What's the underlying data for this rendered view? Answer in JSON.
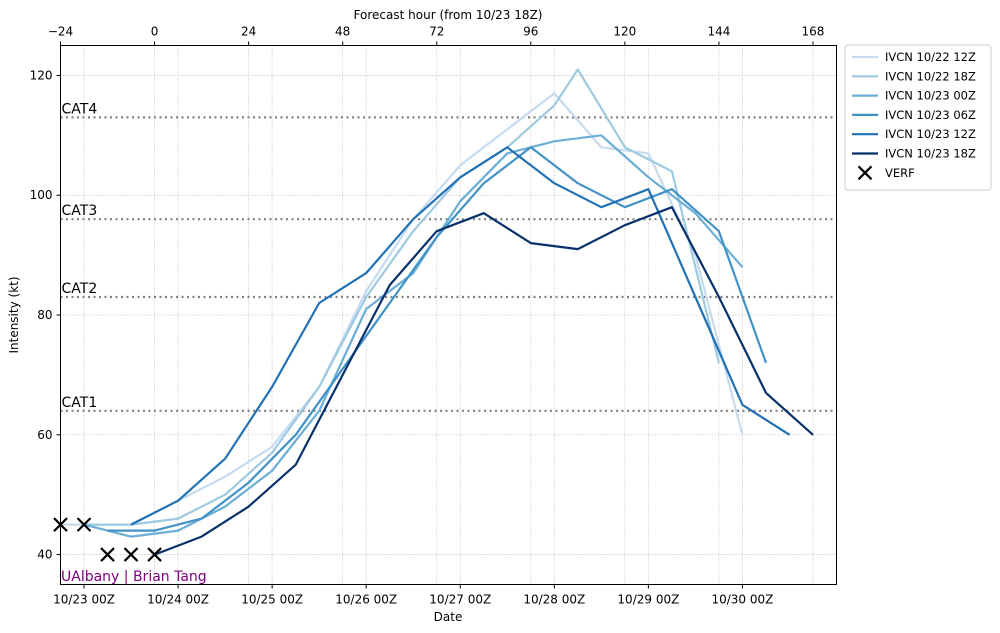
{
  "chart_data": {
    "type": "line",
    "xlabel": "Date",
    "ylabel": "Intensity (kt)",
    "top_axis_label": "Forecast hour (from 10/23 18Z)",
    "x_ticks": [
      "10/23 00Z",
      "10/24 00Z",
      "10/25 00Z",
      "10/26 00Z",
      "10/27 00Z",
      "10/28 00Z",
      "10/29 00Z",
      "10/30 00Z"
    ],
    "top_ticks": [
      "−24",
      "0",
      "24",
      "48",
      "72",
      "96",
      "120",
      "144",
      "168"
    ],
    "y_ticks": [
      "40",
      "60",
      "80",
      "100",
      "120"
    ],
    "xlim_hours_from_10_23_00Z": [
      -6,
      192
    ],
    "ylim": [
      35,
      125
    ],
    "grid": true,
    "legend_position": "outside-right-top",
    "category_lines": [
      {
        "label": "CAT1",
        "value": 64
      },
      {
        "label": "CAT2",
        "value": 83
      },
      {
        "label": "CAT3",
        "value": 96
      },
      {
        "label": "CAT4",
        "value": 113
      }
    ],
    "credit": "UAlbany | Brian Tang",
    "credit_color": "#800080",
    "series": [
      {
        "name": "IVCN 10/22 12Z",
        "color": "#c6dbef",
        "x": [
          "10/22 18Z",
          "10/23 00Z",
          "10/23 12Z",
          "10/24 00Z",
          "10/24 12Z",
          "10/25 00Z",
          "10/25 12Z",
          "10/26 00Z",
          "10/26 12Z",
          "10/27 00Z",
          "10/27 12Z",
          "10/28 00Z",
          "10/28 12Z",
          "10/29 00Z",
          "10/29 12Z",
          "10/30 00Z"
        ],
        "y": [
          45,
          45,
          45,
          49,
          53,
          58,
          68,
          84,
          96,
          105,
          111,
          117,
          108,
          107,
          90,
          60
        ]
      },
      {
        "name": "IVCN 10/22 18Z",
        "color": "#9ecae1",
        "x": [
          "10/23 00Z",
          "10/23 12Z",
          "10/24 00Z",
          "10/24 12Z",
          "10/25 00Z",
          "10/25 12Z",
          "10/26 00Z",
          "10/26 12Z",
          "10/27 00Z",
          "10/27 12Z",
          "10/28 00Z",
          "10/28 06Z",
          "10/28 18Z",
          "10/29 06Z",
          "10/29 18Z"
        ],
        "y": [
          45,
          45,
          46,
          50,
          57,
          68,
          83,
          94,
          103,
          108,
          115,
          121,
          108,
          104,
          72
        ]
      },
      {
        "name": "IVCN 10/23 00Z",
        "color": "#6baed6",
        "x": [
          "10/23 00Z",
          "10/23 12Z",
          "10/24 00Z",
          "10/24 12Z",
          "10/25 00Z",
          "10/25 12Z",
          "10/26 00Z",
          "10/26 12Z",
          "10/27 00Z",
          "10/27 12Z",
          "10/28 00Z",
          "10/28 12Z",
          "10/29 00Z",
          "10/29 12Z",
          "10/30 00Z"
        ],
        "y": [
          45,
          43,
          44,
          48,
          54,
          64,
          81,
          87,
          99,
          107,
          109,
          110,
          103,
          97,
          88
        ]
      },
      {
        "name": "IVCN 10/23 06Z",
        "color": "#4292c6",
        "x": [
          "10/23 06Z",
          "10/23 18Z",
          "10/24 06Z",
          "10/24 18Z",
          "10/25 06Z",
          "10/25 18Z",
          "10/26 06Z",
          "10/26 18Z",
          "10/27 06Z",
          "10/27 18Z",
          "10/28 06Z",
          "10/28 18Z",
          "10/29 06Z",
          "10/29 18Z",
          "10/30 06Z"
        ],
        "y": [
          44,
          44,
          46,
          52,
          60,
          71,
          82,
          93,
          102,
          108,
          102,
          98,
          101,
          94,
          72
        ]
      },
      {
        "name": "IVCN 10/23 12Z",
        "color": "#2171b5",
        "x": [
          "10/23 12Z",
          "10/24 00Z",
          "10/24 12Z",
          "10/25 00Z",
          "10/25 12Z",
          "10/26 00Z",
          "10/26 12Z",
          "10/27 00Z",
          "10/27 12Z",
          "10/28 00Z",
          "10/28 12Z",
          "10/29 00Z",
          "10/29 12Z",
          "10/30 00Z",
          "10/30 12Z"
        ],
        "y": [
          45,
          49,
          56,
          68,
          82,
          87,
          96,
          103,
          108,
          102,
          98,
          101,
          83,
          65,
          60
        ]
      },
      {
        "name": "IVCN 10/23 18Z",
        "color": "#08306b",
        "x": [
          "10/23 18Z",
          "10/24 06Z",
          "10/24 18Z",
          "10/25 06Z",
          "10/25 18Z",
          "10/26 06Z",
          "10/26 18Z",
          "10/27 06Z",
          "10/27 18Z",
          "10/28 06Z",
          "10/28 18Z",
          "10/29 06Z",
          "10/29 18Z",
          "10/30 06Z",
          "10/30 18Z"
        ],
        "y": [
          40,
          43,
          48,
          55,
          70,
          85,
          94,
          97,
          92,
          91,
          95,
          98,
          83,
          67,
          60
        ]
      }
    ],
    "verf": {
      "name": "VERF",
      "x": [
        "10/22 18Z",
        "10/23 00Z",
        "10/23 06Z",
        "10/23 12Z",
        "10/23 18Z"
      ],
      "y": [
        45,
        45,
        40,
        40,
        40
      ]
    }
  }
}
